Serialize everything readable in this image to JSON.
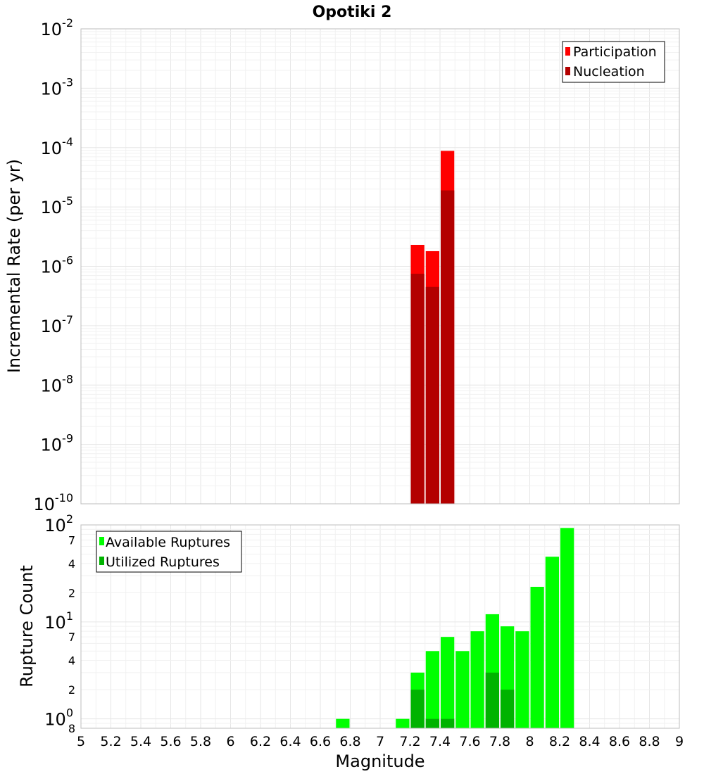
{
  "chart_data": [
    {
      "type": "bar",
      "title": "Opotiki 2",
      "xlabel": "",
      "ylabel": "Incremental Rate (per yr)",
      "xlim": [
        5,
        9
      ],
      "ylim": [
        1e-10,
        0.01
      ],
      "yscale": "log",
      "bin_width": 0.1,
      "grid": true,
      "legend_position": "top-right",
      "y_tick_labels": [
        {
          "value": 1e-10,
          "base": "10",
          "exp": "-10"
        },
        {
          "value": 1e-09,
          "base": "10",
          "exp": "-9"
        },
        {
          "value": 1e-08,
          "base": "10",
          "exp": "-8"
        },
        {
          "value": 1e-07,
          "base": "10",
          "exp": "-7"
        },
        {
          "value": 1e-06,
          "base": "10",
          "exp": "-6"
        },
        {
          "value": 1e-05,
          "base": "10",
          "exp": "-5"
        },
        {
          "value": 0.0001,
          "base": "10",
          "exp": "-4"
        },
        {
          "value": 0.001,
          "base": "10",
          "exp": "-3"
        },
        {
          "value": 0.01,
          "base": "10",
          "exp": "-2"
        }
      ],
      "series": [
        {
          "name": "Participation",
          "color": "#ff0000",
          "x": [
            7.25,
            7.35,
            7.45
          ],
          "values": [
            2.3e-06,
            1.8e-06,
            8.8e-05
          ]
        },
        {
          "name": "Nucleation",
          "color": "#b30000",
          "x": [
            7.25,
            7.35,
            7.45
          ],
          "values": [
            7.5e-07,
            4.5e-07,
            1.9e-05
          ]
        }
      ]
    },
    {
      "type": "bar",
      "title": "",
      "xlabel": "Magnitude",
      "ylabel": "Rupture Count",
      "xlim": [
        5,
        9
      ],
      "ylim": [
        0.8,
        100
      ],
      "yscale": "log",
      "bin_width": 0.1,
      "grid": true,
      "legend_position": "top-left",
      "x_tick_labels": [
        "5",
        "5.2",
        "5.4",
        "5.6",
        "5.8",
        "6",
        "6.2",
        "6.4",
        "6.6",
        "6.8",
        "7",
        "7.2",
        "7.4",
        "7.6",
        "7.8",
        "8",
        "8.2",
        "8.4",
        "8.6",
        "8.8",
        "9"
      ],
      "y_tick_labels": [
        {
          "value": 1,
          "base": "10",
          "exp": "0"
        },
        {
          "value": 10,
          "base": "10",
          "exp": "1"
        },
        {
          "value": 100,
          "base": "10",
          "exp": "2"
        }
      ],
      "y_minor_labels": [
        {
          "value": 0.8,
          "label": "8"
        },
        {
          "value": 2,
          "label": "2"
        },
        {
          "value": 4,
          "label": "4"
        },
        {
          "value": 7,
          "label": "7"
        },
        {
          "value": 20,
          "label": "2"
        },
        {
          "value": 40,
          "label": "4"
        },
        {
          "value": 70,
          "label": "7"
        }
      ],
      "series": [
        {
          "name": "Available Ruptures",
          "color": "#00ff00",
          "x": [
            6.75,
            7.15,
            7.25,
            7.35,
            7.45,
            7.55,
            7.65,
            7.75,
            7.85,
            7.95,
            8.05,
            8.15,
            8.25
          ],
          "values": [
            1,
            1,
            3,
            5,
            7,
            5,
            8,
            12,
            9,
            8,
            23,
            47,
            93
          ]
        },
        {
          "name": "Utilized Ruptures",
          "color": "#00b300",
          "x": [
            7.25,
            7.35,
            7.45,
            7.75,
            7.85
          ],
          "values": [
            2,
            1,
            1,
            3,
            2
          ]
        }
      ]
    }
  ]
}
